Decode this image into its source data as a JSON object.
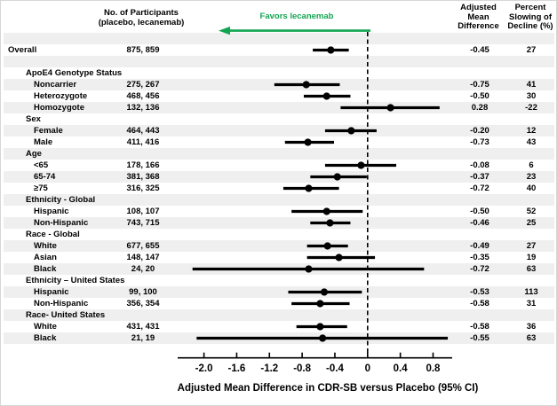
{
  "header": {
    "participants": {
      "line1": "No. of Participants",
      "line2": "(placebo, lecanemab)"
    },
    "favors": "Favors lecanemab",
    "amd": {
      "line1": "Adjusted",
      "line2": "Mean",
      "line3": "Difference"
    },
    "pct": {
      "line1": "Percent",
      "line2": "Slowing of",
      "line3": "Decline (%)"
    }
  },
  "colors": {
    "accent_green": "#12a551",
    "stripe_gray": "#efefef",
    "ink": "#000000"
  },
  "chart_data": {
    "type": "forest",
    "xlabel": "Adjusted Mean Difference in CDR-SB versus Placebo (95% CI)",
    "favors_annotation": "Favors lecanemab",
    "zero_reference": 0,
    "xlim": [
      -2.3,
      1.03
    ],
    "x_ticks": [
      {
        "v": -2.0,
        "label": "-2.0"
      },
      {
        "v": -1.6,
        "label": "-1.6"
      },
      {
        "v": -1.2,
        "label": "-1.2"
      },
      {
        "v": -0.8,
        "label": "-0.8"
      },
      {
        "v": -0.4,
        "label": "-0.4"
      },
      {
        "v": 0,
        "label": "0"
      },
      {
        "v": 0.4,
        "label": "0.4"
      },
      {
        "v": 0.8,
        "label": "0.8"
      }
    ],
    "columns": {
      "participants": "No. of Participants (placebo, lecanemab)",
      "amd": "Adjusted Mean Difference",
      "pct": "Percent Slowing of Decline (%)"
    },
    "rows": [
      {
        "kind": "spacer"
      },
      {
        "kind": "item",
        "indent": 0,
        "label": "Overall",
        "participants": "875, 859",
        "amd": "-0.45",
        "pct": "27",
        "est": -0.45,
        "lo": -0.67,
        "hi": -0.23
      },
      {
        "kind": "spacer"
      },
      {
        "kind": "group",
        "indent": 1,
        "label": "ApoE4 Genotype Status"
      },
      {
        "kind": "item",
        "indent": 2,
        "label": "Noncarrier",
        "participants": "275, 267",
        "amd": "-0.75",
        "pct": "41",
        "est": -0.75,
        "lo": -1.14,
        "hi": -0.34
      },
      {
        "kind": "item",
        "indent": 2,
        "label": "Heterozygote",
        "participants": "468, 456",
        "amd": "-0.50",
        "pct": "30",
        "est": -0.5,
        "lo": -0.78,
        "hi": -0.21
      },
      {
        "kind": "item",
        "indent": 2,
        "label": "Homozygote",
        "participants": "132, 136",
        "amd": "0.28",
        "pct": "-22",
        "est": 0.28,
        "lo": -0.33,
        "hi": 0.88
      },
      {
        "kind": "group",
        "indent": 1,
        "label": "Sex"
      },
      {
        "kind": "item",
        "indent": 2,
        "label": "Female",
        "participants": "464, 443",
        "amd": "-0.20",
        "pct": "12",
        "est": -0.2,
        "lo": -0.52,
        "hi": 0.11
      },
      {
        "kind": "item",
        "indent": 2,
        "label": "Male",
        "participants": "411, 416",
        "amd": "-0.73",
        "pct": "43",
        "est": -0.73,
        "lo": -1.01,
        "hi": -0.41
      },
      {
        "kind": "group",
        "indent": 1,
        "label": "Age"
      },
      {
        "kind": "item",
        "indent": 2,
        "label": "<65",
        "participants": "178, 166",
        "amd": "-0.08",
        "pct": "6",
        "est": -0.08,
        "lo": -0.52,
        "hi": 0.35
      },
      {
        "kind": "item",
        "indent": 2,
        "label": "65-74",
        "participants": "381, 368",
        "amd": "-0.37",
        "pct": "23",
        "est": -0.37,
        "lo": -0.7,
        "hi": -0.01
      },
      {
        "kind": "item",
        "indent": 2,
        "label": "≥75",
        "participants": "316, 325",
        "amd": "-0.72",
        "pct": "40",
        "est": -0.72,
        "lo": -1.03,
        "hi": -0.35
      },
      {
        "kind": "group",
        "indent": 1,
        "label": "Ethnicity - Global"
      },
      {
        "kind": "item",
        "indent": 2,
        "label": "Hispanic",
        "participants": "108, 107",
        "amd": "-0.50",
        "pct": "52",
        "est": -0.5,
        "lo": -0.93,
        "hi": -0.06
      },
      {
        "kind": "item",
        "indent": 2,
        "label": "Non-Hispanic",
        "participants": "743, 715",
        "amd": "-0.46",
        "pct": "25",
        "est": -0.46,
        "lo": -0.7,
        "hi": -0.21
      },
      {
        "kind": "group",
        "indent": 1,
        "label": "Race - Global"
      },
      {
        "kind": "item",
        "indent": 2,
        "label": "White",
        "participants": "677, 655",
        "amd": "-0.49",
        "pct": "27",
        "est": -0.49,
        "lo": -0.74,
        "hi": -0.24
      },
      {
        "kind": "item",
        "indent": 2,
        "label": "Asian",
        "participants": "148, 147",
        "amd": "-0.35",
        "pct": "19",
        "est": -0.35,
        "lo": -0.74,
        "hi": 0.09
      },
      {
        "kind": "item",
        "indent": 2,
        "label": "Black",
        "participants": "24, 20",
        "amd": "-0.72",
        "pct": "63",
        "est": -0.72,
        "lo": -2.14,
        "hi": 0.69
      },
      {
        "kind": "group",
        "indent": 1,
        "label": "Ethnicity – United States"
      },
      {
        "kind": "item",
        "indent": 2,
        "label": "Hispanic",
        "participants": "99, 100",
        "amd": "-0.53",
        "pct": "113",
        "est": -0.53,
        "lo": -0.97,
        "hi": -0.07
      },
      {
        "kind": "item",
        "indent": 2,
        "label": "Non-Hispanic",
        "participants": "356, 354",
        "amd": "-0.58",
        "pct": "31",
        "est": -0.58,
        "lo": -0.93,
        "hi": -0.22
      },
      {
        "kind": "group",
        "indent": 1,
        "label": "Race- United States"
      },
      {
        "kind": "item",
        "indent": 2,
        "label": "White",
        "participants": "431, 431",
        "amd": "-0.58",
        "pct": "36",
        "est": -0.58,
        "lo": -0.87,
        "hi": -0.25
      },
      {
        "kind": "item",
        "indent": 2,
        "label": "Black",
        "participants": "21, 19",
        "amd": "-0.55",
        "pct": "63",
        "est": -0.55,
        "lo": -2.09,
        "hi": 0.98
      }
    ]
  }
}
